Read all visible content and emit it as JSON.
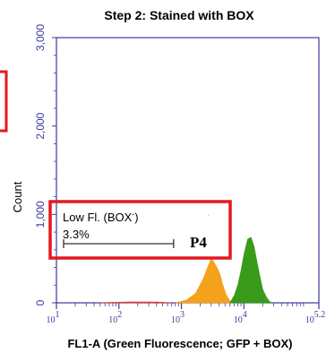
{
  "chart_data": {
    "type": "area",
    "title": "Step 2: Stained with BOX",
    "xlabel": "FL1-A (Green Fluorescence; GFP + BOX)",
    "ylabel": "Count",
    "x_scale": "log",
    "xlim": [
      10,
      158489
    ],
    "ylim": [
      0,
      3000
    ],
    "y_ticks": [
      "3,000",
      "2,000",
      "1,000",
      "0"
    ],
    "y_tick_values": [
      3000,
      2000,
      1000,
      0
    ],
    "x_tick_values": [
      10,
      100,
      1000,
      10000,
      158489
    ],
    "x_tick_labels": [
      {
        "base": "10",
        "exp": "1"
      },
      {
        "base": "10",
        "exp": "2"
      },
      {
        "base": "10",
        "exp": "3"
      },
      {
        "base": "10",
        "exp": "4"
      },
      {
        "base": "10",
        "exp": "5.2"
      }
    ],
    "series": [
      {
        "color": "#f5a21b",
        "x": [
          800,
          1200,
          1700,
          2200,
          2700,
          3000,
          3300,
          3700,
          4100,
          4600,
          5200,
          6000,
          7000
        ],
        "y": [
          0,
          30,
          110,
          260,
          420,
          500,
          460,
          400,
          330,
          200,
          90,
          20,
          0
        ]
      },
      {
        "color": "#3a9a1a",
        "x": [
          6000,
          7000,
          8000,
          9000,
          10000,
          11500,
          13000,
          14500,
          16000,
          18000,
          20000,
          23000,
          26000,
          30000
        ],
        "y": [
          0,
          80,
          200,
          360,
          540,
          720,
          740,
          640,
          480,
          300,
          150,
          60,
          10,
          0
        ]
      },
      {
        "color": "#e23a3a",
        "x": [
          50,
          150,
          400,
          700
        ],
        "y": [
          0,
          10,
          8,
          0
        ]
      }
    ],
    "gate": {
      "label": "Low Fl. (BOX",
      "label_sup": "-",
      "label_close": ")",
      "percent": "3.3%",
      "name": "P4",
      "x_range": [
        10,
        750
      ]
    }
  },
  "colors": {
    "axis": "#3a3aa0",
    "highlight": "#e4191e"
  }
}
